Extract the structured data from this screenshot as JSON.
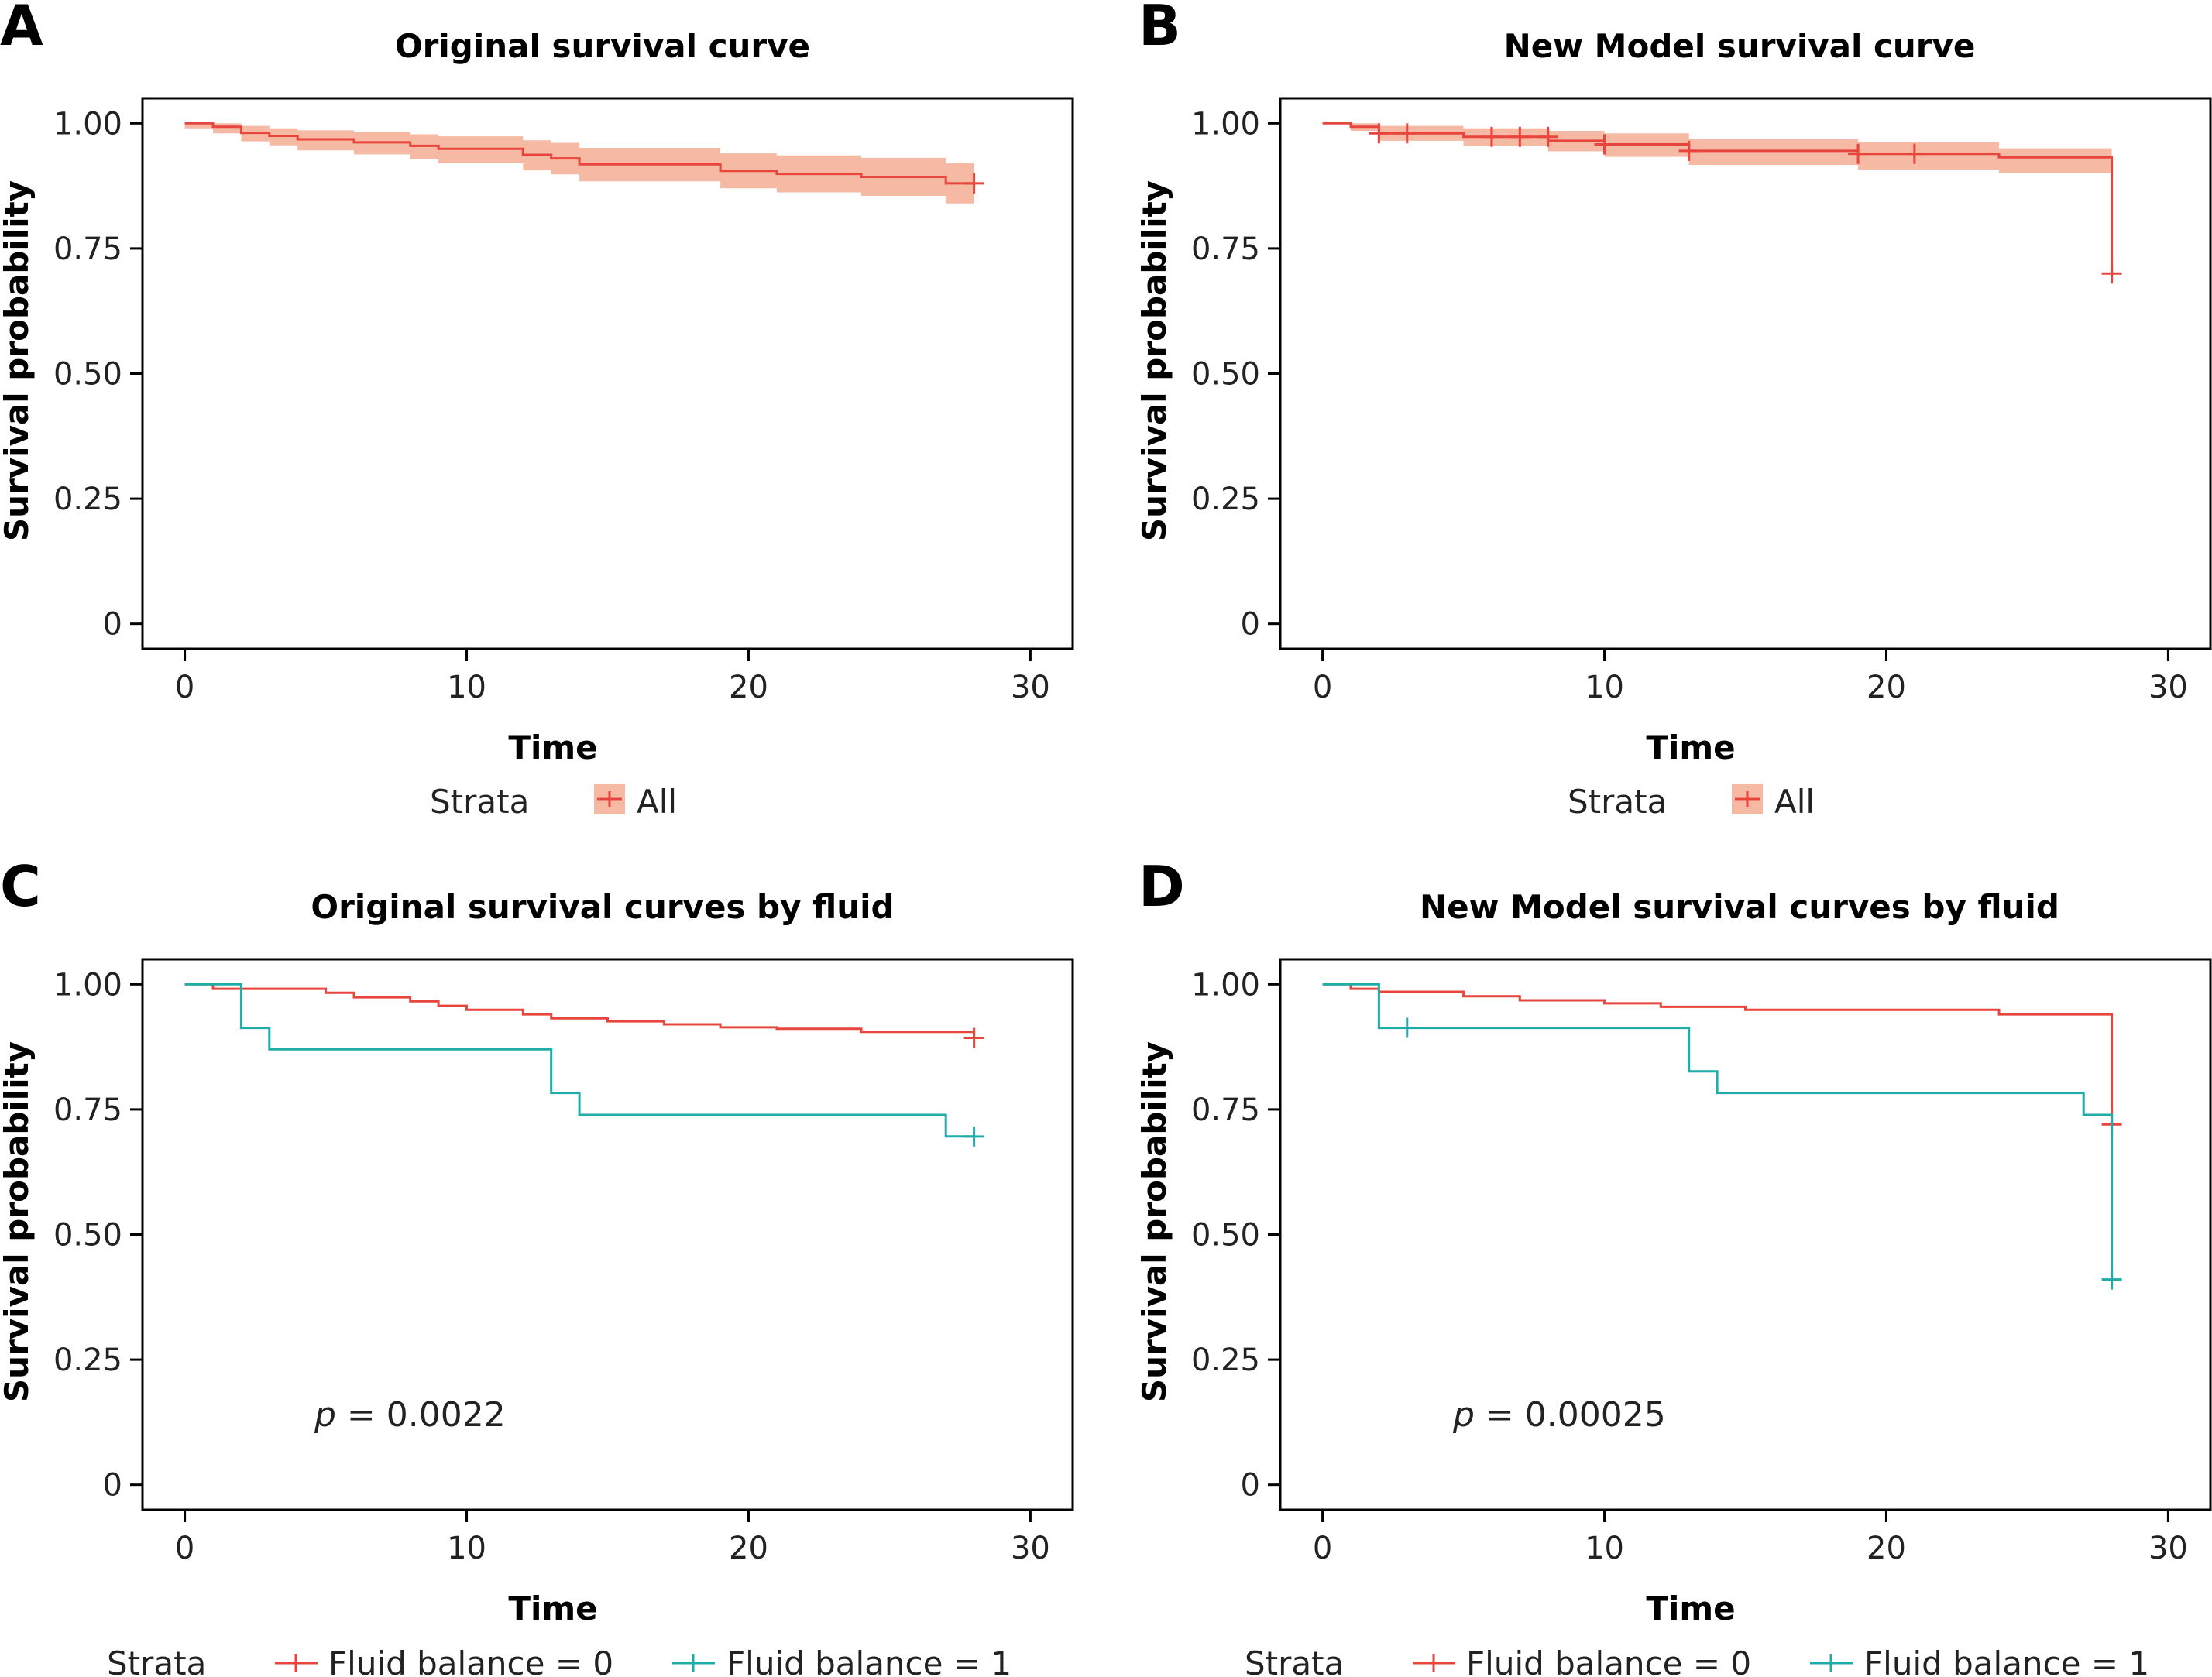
{
  "figure": {
    "colors": {
      "red": "#E8453C",
      "teal": "#1EADA8",
      "ribbon": "#F6B9A4",
      "axis": "#000000"
    }
  },
  "chart_data": [
    {
      "panel": "A",
      "type": "line",
      "step": true,
      "title": "Original survival curve",
      "xlabel": "Time",
      "ylabel": "Survival probability",
      "xlim": [
        -1.5,
        31.5
      ],
      "ylim": [
        -0.05,
        1.05
      ],
      "xticks": [
        0,
        10,
        20,
        30
      ],
      "yticks": [
        0,
        0.25,
        0.5,
        0.75,
        1.0
      ],
      "ytick_labels": [
        "0",
        "0.25",
        "0.50",
        "0.75",
        "1.00"
      ],
      "legend": {
        "title": "Strata",
        "entries": [
          "All"
        ]
      },
      "confidence_band": true,
      "series": [
        {
          "name": "All",
          "color": "red",
          "x": [
            0,
            1,
            2,
            3,
            4,
            6,
            8,
            9,
            12,
            13,
            14,
            19,
            20,
            21,
            24,
            27,
            28
          ],
          "y": [
            1.0,
            0.993,
            0.981,
            0.975,
            0.968,
            0.962,
            0.955,
            0.949,
            0.937,
            0.93,
            0.918,
            0.905,
            0.905,
            0.899,
            0.893,
            0.88,
            0.88
          ],
          "lower": [
            0.99,
            0.98,
            0.964,
            0.956,
            0.946,
            0.938,
            0.929,
            0.92,
            0.906,
            0.898,
            0.884,
            0.87,
            0.87,
            0.862,
            0.855,
            0.84,
            0.84
          ],
          "upper": [
            1.0,
            1.0,
            0.995,
            0.99,
            0.986,
            0.982,
            0.978,
            0.974,
            0.966,
            0.961,
            0.951,
            0.94,
            0.94,
            0.936,
            0.931,
            0.92,
            0.92
          ],
          "censor_x": [
            28
          ],
          "censor_y": [
            0.88
          ]
        }
      ]
    },
    {
      "panel": "B",
      "type": "line",
      "step": true,
      "title": "New Model survival curve",
      "xlabel": "Time",
      "ylabel": "Survival probability",
      "xlim": [
        -1.5,
        31.5
      ],
      "ylim": [
        -0.05,
        1.05
      ],
      "xticks": [
        0,
        10,
        20,
        30
      ],
      "yticks": [
        0,
        0.25,
        0.5,
        0.75,
        1.0
      ],
      "ytick_labels": [
        "0",
        "0.25",
        "0.50",
        "0.75",
        "1.00"
      ],
      "legend": {
        "title": "Strata",
        "entries": [
          "All"
        ]
      },
      "confidence_band": true,
      "series": [
        {
          "name": "All",
          "color": "red",
          "x": [
            0,
            1,
            2,
            5,
            8,
            10,
            13,
            19,
            24,
            28,
            28
          ],
          "y": [
            1.0,
            0.993,
            0.98,
            0.973,
            0.965,
            0.958,
            0.945,
            0.939,
            0.932,
            0.932,
            0.7
          ],
          "lower": [
            1.0,
            0.985,
            0.965,
            0.955,
            0.944,
            0.933,
            0.917,
            0.907,
            0.9,
            0.9,
            0.7
          ],
          "upper": [
            1.0,
            1.0,
            0.995,
            0.99,
            0.985,
            0.98,
            0.968,
            0.962,
            0.95,
            0.95,
            0.7
          ],
          "censor_x": [
            2,
            3,
            6,
            7,
            8,
            10,
            13,
            19,
            21,
            28
          ],
          "censor_y": [
            0.98,
            0.98,
            0.973,
            0.973,
            0.973,
            0.958,
            0.945,
            0.939,
            0.939,
            0.7
          ]
        }
      ]
    },
    {
      "panel": "C",
      "type": "line",
      "step": true,
      "title": "Original survival curves by fluid",
      "xlabel": "Time",
      "ylabel": "Survival probability",
      "xlim": [
        -1.5,
        31.5
      ],
      "ylim": [
        -0.05,
        1.05
      ],
      "xticks": [
        0,
        10,
        20,
        30
      ],
      "yticks": [
        0,
        0.25,
        0.5,
        0.75,
        1.0
      ],
      "ytick_labels": [
        "0",
        "0.25",
        "0.50",
        "0.75",
        "1.00"
      ],
      "legend": {
        "title": "Strata",
        "entries": [
          "Fluid balance = 0",
          "Fluid balance = 1"
        ]
      },
      "annotation": {
        "p_symbol": "p",
        "p_rest": " = 0.0022"
      },
      "annotation_pos_data": [
        4.5,
        0.14
      ],
      "series": [
        {
          "name": "Fluid balance = 0",
          "color": "red",
          "x": [
            0,
            1,
            5,
            6,
            8,
            9,
            10,
            12,
            13,
            15,
            17,
            19,
            21,
            24,
            28
          ],
          "y": [
            1.0,
            0.991,
            0.983,
            0.974,
            0.966,
            0.957,
            0.949,
            0.94,
            0.932,
            0.926,
            0.92,
            0.914,
            0.911,
            0.905,
            0.893
          ],
          "censor_x": [
            28
          ],
          "censor_y": [
            0.893
          ]
        },
        {
          "name": "Fluid balance = 1",
          "color": "teal",
          "x": [
            0,
            2,
            3,
            13,
            14,
            27,
            28
          ],
          "y": [
            1.0,
            0.913,
            0.87,
            0.783,
            0.739,
            0.696,
            0.696
          ],
          "censor_x": [
            28
          ],
          "censor_y": [
            0.696
          ]
        }
      ]
    },
    {
      "panel": "D",
      "type": "line",
      "step": true,
      "title": "New Model survival curves by fluid",
      "xlabel": "Time",
      "ylabel": "Survival probability",
      "xlim": [
        -1.5,
        31.5
      ],
      "ylim": [
        -0.05,
        1.05
      ],
      "xticks": [
        0,
        10,
        20,
        30
      ],
      "yticks": [
        0,
        0.25,
        0.5,
        0.75,
        1.0
      ],
      "ytick_labels": [
        "0",
        "0.25",
        "0.50",
        "0.75",
        "1.00"
      ],
      "legend": {
        "title": "Strata",
        "entries": [
          "Fluid balance = 0",
          "Fluid balance = 1"
        ]
      },
      "annotation": {
        "p_symbol": "p",
        "p_rest": " = 0.00025"
      },
      "annotation_pos_data": [
        4.5,
        0.14
      ],
      "series": [
        {
          "name": "Fluid balance = 0",
          "color": "red",
          "x": [
            0,
            1,
            2,
            5,
            7,
            10,
            12,
            15,
            24,
            28
          ],
          "y": [
            1.0,
            0.991,
            0.985,
            0.976,
            0.968,
            0.962,
            0.955,
            0.949,
            0.94,
            0.72
          ],
          "censor_x": [
            28
          ],
          "censor_y": [
            0.72
          ]
        },
        {
          "name": "Fluid balance = 1",
          "color": "teal",
          "x": [
            0,
            2,
            13,
            14,
            27,
            28
          ],
          "y": [
            1.0,
            0.913,
            0.826,
            0.783,
            0.739,
            0.41
          ],
          "censor_x": [
            3,
            28
          ],
          "censor_y": [
            0.913,
            0.41
          ]
        }
      ]
    }
  ]
}
